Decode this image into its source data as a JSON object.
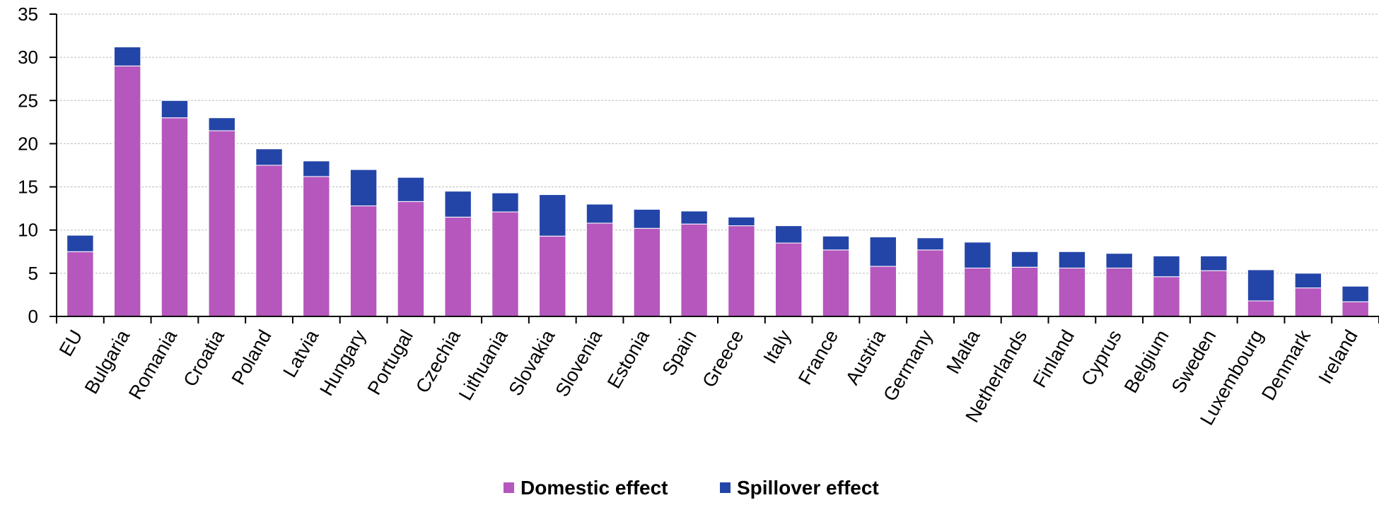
{
  "chart_data": {
    "type": "bar",
    "stacked": true,
    "categories": [
      "EU",
      "Bulgaria",
      "Romania",
      "Croatia",
      "Poland",
      "Latvia",
      "Hungary",
      "Portugal",
      "Czechia",
      "Lithuania",
      "Slovakia",
      "Slovenia",
      "Estonia",
      "Spain",
      "Greece",
      "Italy",
      "France",
      "Austria",
      "Germany",
      "Malta",
      "Netherlands",
      "Finland",
      "Cyprus",
      "Belgium",
      "Sweden",
      "Luxembourg",
      "Denmark",
      "Ireland"
    ],
    "series": [
      {
        "name": "Domestic effect",
        "color": "#b557bd",
        "values": [
          7.5,
          29.0,
          23.0,
          21.5,
          17.5,
          16.2,
          12.8,
          13.3,
          11.5,
          12.1,
          9.3,
          10.8,
          10.2,
          10.7,
          10.5,
          8.5,
          7.7,
          5.8,
          7.7,
          5.6,
          5.7,
          5.6,
          5.6,
          4.6,
          5.3,
          1.8,
          3.3,
          1.7
        ]
      },
      {
        "name": "Spillover effect",
        "color": "#2445a8",
        "values": [
          1.9,
          2.2,
          2.0,
          1.5,
          1.9,
          1.8,
          4.2,
          2.8,
          3.0,
          2.2,
          4.8,
          2.2,
          2.2,
          1.5,
          1.0,
          2.0,
          1.6,
          3.4,
          1.4,
          3.0,
          1.8,
          1.9,
          1.7,
          2.4,
          1.7,
          3.6,
          1.7,
          1.8
        ]
      }
    ],
    "ylim": [
      0,
      35
    ],
    "yticks": [
      0,
      5,
      10,
      15,
      20,
      25,
      30,
      35
    ],
    "grid": true,
    "legend_position": "bottom-center",
    "title": "",
    "xlabel": "",
    "ylabel": ""
  }
}
